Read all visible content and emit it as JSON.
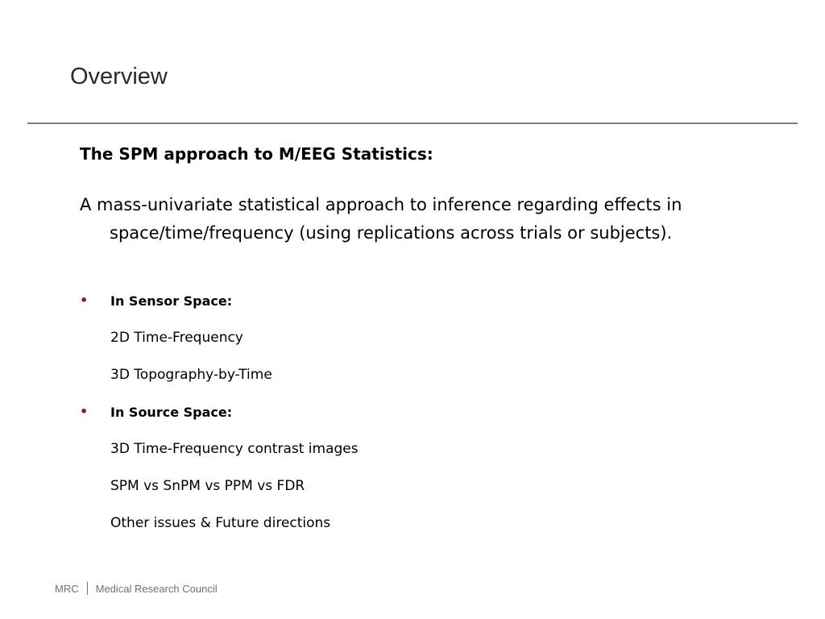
{
  "slide": {
    "title": "Overview",
    "heading": "The SPM approach to M/EEG Statistics:",
    "paragraph": "A mass-univariate statistical approach to inference regarding effects in space/time/frequency (using replications across trials or subjects).",
    "bullets": [
      {
        "label": "In Sensor Space:",
        "items": [
          "2D Time-Frequency",
          "3D Topography-by-Time"
        ]
      },
      {
        "label": "In Source Space:",
        "items": [
          "3D Time-Frequency contrast images",
          "SPM vs SnPM vs PPM vs FDR",
          "Other issues & Future directions"
        ]
      }
    ],
    "bullet_symbol": "•",
    "bullet_color": "#8b1a4a"
  },
  "footer": {
    "logo_abbrev": "MRC",
    "logo_name": "Medical Research Council"
  }
}
